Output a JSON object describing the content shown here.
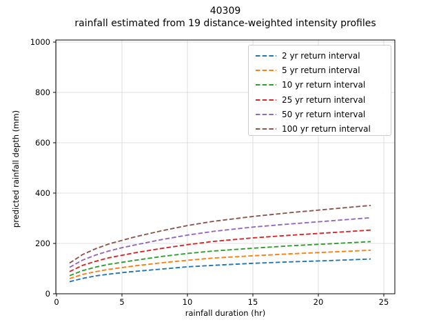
{
  "figure": {
    "title_line1": "40309",
    "title_line2": "rainfall estimated from 19 distance-weighted intensity profiles"
  },
  "chart_data": {
    "type": "line",
    "title": "40309",
    "subtitle": "rainfall estimated from 19 distance-weighted intensity profiles",
    "xlabel": "rainfall duration (hr)",
    "ylabel": "predicted rainfall depth (mm)",
    "xlim": [
      -0.2,
      25.9
    ],
    "ylim": [
      0,
      1000
    ],
    "xticks": [
      0,
      5,
      10,
      15,
      20,
      25
    ],
    "yticks": [
      0,
      200,
      400,
      600,
      800,
      1000
    ],
    "grid": true,
    "grid_color": "#d4d4d4",
    "legend_position": "upper right",
    "line_style": "dashed",
    "x": [
      1,
      2,
      3,
      4,
      5,
      6,
      8,
      10,
      12,
      15,
      18,
      21,
      24
    ],
    "series": [
      {
        "name": "2 yr return interval",
        "color": "#1f77b4",
        "values": [
          48,
          61,
          71,
          78,
          84,
          89,
          98,
          107,
          113,
          121,
          127,
          132,
          138
        ]
      },
      {
        "name": "5 yr return interval",
        "color": "#ff7f0e",
        "values": [
          60,
          77,
          88,
          97,
          104,
          111,
          123,
          133,
          142,
          151,
          159,
          166,
          173
        ]
      },
      {
        "name": "10 yr return interval",
        "color": "#2ca02c",
        "values": [
          72,
          92,
          106,
          117,
          125,
          133,
          148,
          160,
          170,
          181,
          191,
          199,
          207
        ]
      },
      {
        "name": "25 yr return interval",
        "color": "#d62728",
        "values": [
          88,
          113,
          129,
          143,
          153,
          163,
          180,
          195,
          208,
          222,
          233,
          243,
          253
        ]
      },
      {
        "name": "50 yr return interval",
        "color": "#9467bd",
        "values": [
          105,
          134,
          154,
          170,
          183,
          194,
          215,
          233,
          248,
          265,
          278,
          290,
          302
        ]
      },
      {
        "name": "100 yr return interval",
        "color": "#8c564b",
        "values": [
          122,
          156,
          179,
          198,
          212,
          226,
          250,
          271,
          288,
          307,
          323,
          337,
          351
        ]
      }
    ]
  }
}
